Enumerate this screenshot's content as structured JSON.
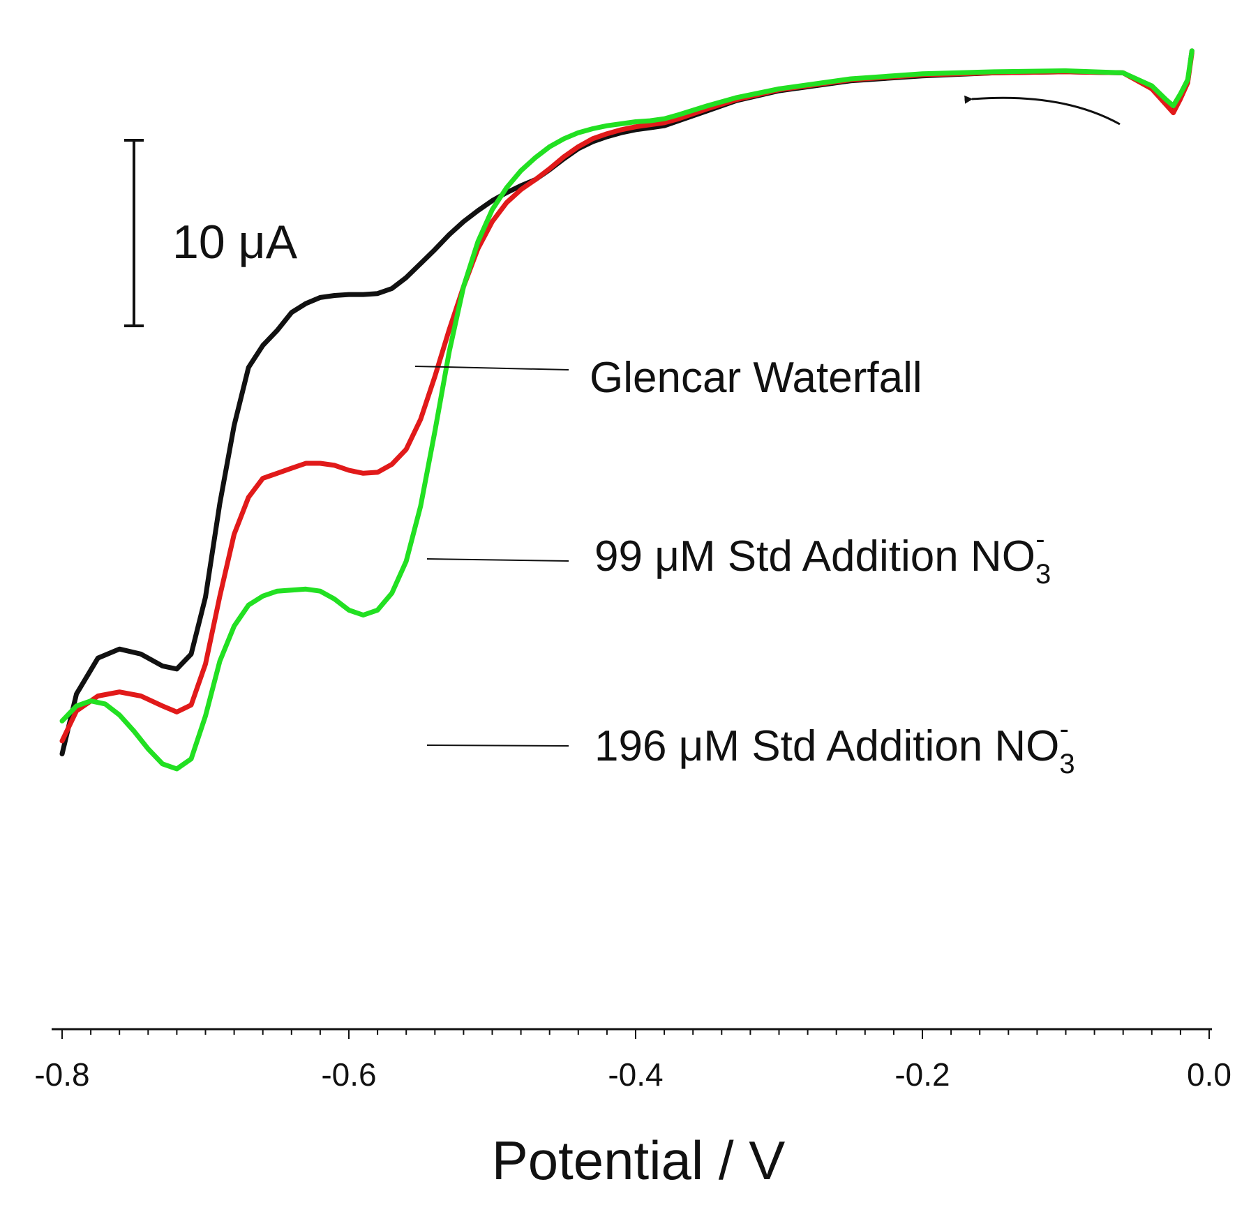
{
  "chart_data": {
    "type": "line",
    "title": "",
    "xlabel": "Potential / V",
    "ylabel": "",
    "xlim": [
      -0.8,
      0.0
    ],
    "ylim": [
      -40,
      40
    ],
    "x_ticks": [
      "-0.8",
      "-0.6",
      "-0.4",
      "-0.2",
      "0.0"
    ],
    "x_tick_values": [
      -0.8,
      -0.6,
      -0.4,
      -0.2,
      0.0
    ],
    "scale_bar": {
      "label": "10 μA",
      "value": 10
    },
    "scan_direction": "right-to-left",
    "series": [
      {
        "name": "Glencar Waterfall",
        "color": "#111111",
        "label": "Glencar Waterfall",
        "points": [
          [
            -0.8,
            -31.3
          ],
          [
            -0.79,
            -25.3
          ],
          [
            -0.775,
            -21.7
          ],
          [
            -0.76,
            -20.8
          ],
          [
            -0.745,
            -21.3
          ],
          [
            -0.73,
            -22.5
          ],
          [
            -0.72,
            -22.8
          ],
          [
            -0.71,
            -21.3
          ],
          [
            -0.7,
            -15.6
          ],
          [
            -0.69,
            -6.2
          ],
          [
            -0.68,
            1.6
          ],
          [
            -0.67,
            7.4
          ],
          [
            -0.66,
            9.6
          ],
          [
            -0.65,
            11.1
          ],
          [
            -0.64,
            12.9
          ],
          [
            -0.63,
            13.8
          ],
          [
            -0.62,
            14.4
          ],
          [
            -0.61,
            14.6
          ],
          [
            -0.6,
            14.7
          ],
          [
            -0.59,
            14.7
          ],
          [
            -0.58,
            14.8
          ],
          [
            -0.57,
            15.3
          ],
          [
            -0.56,
            16.4
          ],
          [
            -0.55,
            17.8
          ],
          [
            -0.54,
            19.2
          ],
          [
            -0.53,
            20.7
          ],
          [
            -0.52,
            22.0
          ],
          [
            -0.51,
            23.1
          ],
          [
            -0.5,
            24.1
          ],
          [
            -0.49,
            24.9
          ],
          [
            -0.48,
            25.6
          ],
          [
            -0.47,
            26.2
          ],
          [
            -0.46,
            27.2
          ],
          [
            -0.45,
            28.3
          ],
          [
            -0.44,
            29.3
          ],
          [
            -0.43,
            30.0
          ],
          [
            -0.42,
            30.5
          ],
          [
            -0.41,
            30.9
          ],
          [
            -0.4,
            31.2
          ],
          [
            -0.39,
            31.4
          ],
          [
            -0.38,
            31.6
          ],
          [
            -0.37,
            32.1
          ],
          [
            -0.35,
            33.1
          ],
          [
            -0.33,
            34.1
          ],
          [
            -0.3,
            35.1
          ],
          [
            -0.25,
            36.1
          ],
          [
            -0.2,
            36.6
          ],
          [
            -0.15,
            36.9
          ],
          [
            -0.1,
            37.0
          ],
          [
            -0.06,
            36.9
          ],
          [
            -0.04,
            35.4
          ],
          [
            -0.03,
            33.9
          ],
          [
            -0.025,
            33.2
          ],
          [
            -0.02,
            34.5
          ],
          [
            -0.015,
            36.0
          ],
          [
            -0.012,
            39.1
          ]
        ]
      },
      {
        "name": "99 μM Std Addition NO3-",
        "color": "#e11a1a",
        "label_main": "99 μM Std Addition NO",
        "label_sub": "3",
        "label_sup": "-",
        "points": [
          [
            -0.8,
            -30.0
          ],
          [
            -0.79,
            -27.0
          ],
          [
            -0.775,
            -25.5
          ],
          [
            -0.76,
            -25.1
          ],
          [
            -0.745,
            -25.5
          ],
          [
            -0.73,
            -26.5
          ],
          [
            -0.72,
            -27.1
          ],
          [
            -0.71,
            -26.4
          ],
          [
            -0.7,
            -22.3
          ],
          [
            -0.69,
            -15.5
          ],
          [
            -0.68,
            -9.3
          ],
          [
            -0.67,
            -5.6
          ],
          [
            -0.66,
            -3.7
          ],
          [
            -0.65,
            -3.2
          ],
          [
            -0.64,
            -2.7
          ],
          [
            -0.63,
            -2.2
          ],
          [
            -0.62,
            -2.2
          ],
          [
            -0.61,
            -2.4
          ],
          [
            -0.6,
            -2.9
          ],
          [
            -0.59,
            -3.2
          ],
          [
            -0.58,
            -3.1
          ],
          [
            -0.57,
            -2.3
          ],
          [
            -0.56,
            -0.8
          ],
          [
            -0.55,
            2.2
          ],
          [
            -0.54,
            6.5
          ],
          [
            -0.53,
            11.2
          ],
          [
            -0.52,
            15.5
          ],
          [
            -0.51,
            19.3
          ],
          [
            -0.5,
            22.0
          ],
          [
            -0.49,
            23.9
          ],
          [
            -0.48,
            25.2
          ],
          [
            -0.47,
            26.2
          ],
          [
            -0.46,
            27.3
          ],
          [
            -0.45,
            28.5
          ],
          [
            -0.44,
            29.5
          ],
          [
            -0.43,
            30.3
          ],
          [
            -0.42,
            30.8
          ],
          [
            -0.41,
            31.2
          ],
          [
            -0.4,
            31.5
          ],
          [
            -0.39,
            31.7
          ],
          [
            -0.38,
            31.9
          ],
          [
            -0.37,
            32.3
          ],
          [
            -0.35,
            33.3
          ],
          [
            -0.33,
            34.2
          ],
          [
            -0.3,
            35.2
          ],
          [
            -0.25,
            36.2
          ],
          [
            -0.2,
            36.7
          ],
          [
            -0.15,
            36.9
          ],
          [
            -0.1,
            37.0
          ],
          [
            -0.06,
            36.9
          ],
          [
            -0.04,
            35.3
          ],
          [
            -0.03,
            33.7
          ],
          [
            -0.025,
            32.9
          ],
          [
            -0.02,
            34.3
          ],
          [
            -0.015,
            35.9
          ],
          [
            -0.012,
            38.9
          ]
        ]
      },
      {
        "name": "196 μM Std Addition NO3-",
        "color": "#22e022",
        "label_main": "196 μM Std Addition NO",
        "label_sub": "3",
        "label_sup": "-",
        "points": [
          [
            -0.8,
            -28.0
          ],
          [
            -0.79,
            -26.5
          ],
          [
            -0.78,
            -26.0
          ],
          [
            -0.77,
            -26.3
          ],
          [
            -0.76,
            -27.4
          ],
          [
            -0.75,
            -29.0
          ],
          [
            -0.74,
            -30.8
          ],
          [
            -0.73,
            -32.3
          ],
          [
            -0.72,
            -32.8
          ],
          [
            -0.71,
            -31.8
          ],
          [
            -0.7,
            -27.5
          ],
          [
            -0.69,
            -22.0
          ],
          [
            -0.68,
            -18.5
          ],
          [
            -0.67,
            -16.4
          ],
          [
            -0.66,
            -15.5
          ],
          [
            -0.65,
            -15.0
          ],
          [
            -0.64,
            -14.9
          ],
          [
            -0.63,
            -14.8
          ],
          [
            -0.62,
            -15.0
          ],
          [
            -0.61,
            -15.8
          ],
          [
            -0.6,
            -16.9
          ],
          [
            -0.59,
            -17.4
          ],
          [
            -0.58,
            -16.9
          ],
          [
            -0.57,
            -15.2
          ],
          [
            -0.56,
            -12.0
          ],
          [
            -0.55,
            -6.5
          ],
          [
            -0.54,
            1.0
          ],
          [
            -0.53,
            9.0
          ],
          [
            -0.52,
            15.5
          ],
          [
            -0.51,
            20.0
          ],
          [
            -0.5,
            23.2
          ],
          [
            -0.49,
            25.4
          ],
          [
            -0.48,
            27.1
          ],
          [
            -0.47,
            28.4
          ],
          [
            -0.46,
            29.5
          ],
          [
            -0.45,
            30.3
          ],
          [
            -0.44,
            30.9
          ],
          [
            -0.43,
            31.3
          ],
          [
            -0.42,
            31.6
          ],
          [
            -0.41,
            31.8
          ],
          [
            -0.4,
            32.0
          ],
          [
            -0.39,
            32.1
          ],
          [
            -0.38,
            32.3
          ],
          [
            -0.37,
            32.7
          ],
          [
            -0.35,
            33.6
          ],
          [
            -0.33,
            34.4
          ],
          [
            -0.3,
            35.3
          ],
          [
            -0.25,
            36.3
          ],
          [
            -0.2,
            36.8
          ],
          [
            -0.15,
            37.0
          ],
          [
            -0.1,
            37.1
          ],
          [
            -0.06,
            36.9
          ],
          [
            -0.04,
            35.6
          ],
          [
            -0.03,
            34.2
          ],
          [
            -0.025,
            33.6
          ],
          [
            -0.02,
            34.8
          ],
          [
            -0.015,
            36.2
          ],
          [
            -0.012,
            39.1
          ]
        ]
      }
    ]
  }
}
